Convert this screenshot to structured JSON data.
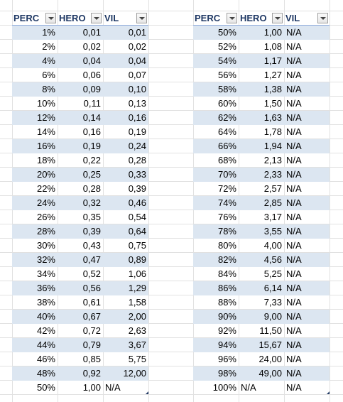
{
  "tables": [
    {
      "headers": [
        "PERC",
        "HERO",
        "VIL"
      ],
      "rows": [
        [
          "1%",
          "0,01",
          "0,01"
        ],
        [
          "2%",
          "0,02",
          "0,02"
        ],
        [
          "4%",
          "0,04",
          "0,04"
        ],
        [
          "6%",
          "0,06",
          "0,07"
        ],
        [
          "8%",
          "0,09",
          "0,10"
        ],
        [
          "10%",
          "0,11",
          "0,13"
        ],
        [
          "12%",
          "0,14",
          "0,16"
        ],
        [
          "14%",
          "0,16",
          "0,19"
        ],
        [
          "16%",
          "0,19",
          "0,24"
        ],
        [
          "18%",
          "0,22",
          "0,28"
        ],
        [
          "20%",
          "0,25",
          "0,33"
        ],
        [
          "22%",
          "0,28",
          "0,39"
        ],
        [
          "24%",
          "0,32",
          "0,46"
        ],
        [
          "26%",
          "0,35",
          "0,54"
        ],
        [
          "28%",
          "0,39",
          "0,64"
        ],
        [
          "30%",
          "0,43",
          "0,75"
        ],
        [
          "32%",
          "0,47",
          "0,89"
        ],
        [
          "34%",
          "0,52",
          "1,06"
        ],
        [
          "36%",
          "0,56",
          "1,29"
        ],
        [
          "38%",
          "0,61",
          "1,58"
        ],
        [
          "40%",
          "0,67",
          "2,00"
        ],
        [
          "42%",
          "0,72",
          "2,63"
        ],
        [
          "44%",
          "0,79",
          "3,67"
        ],
        [
          "46%",
          "0,85",
          "5,75"
        ],
        [
          "48%",
          "0,92",
          "12,00"
        ],
        [
          "50%",
          "1,00",
          "N/A"
        ]
      ]
    },
    {
      "headers": [
        "PERC",
        "HERO",
        "VIL"
      ],
      "rows": [
        [
          "50%",
          "1,00",
          "N/A"
        ],
        [
          "52%",
          "1,08",
          "N/A"
        ],
        [
          "54%",
          "1,17",
          "N/A"
        ],
        [
          "56%",
          "1,27",
          "N/A"
        ],
        [
          "58%",
          "1,38",
          "N/A"
        ],
        [
          "60%",
          "1,50",
          "N/A"
        ],
        [
          "62%",
          "1,63",
          "N/A"
        ],
        [
          "64%",
          "1,78",
          "N/A"
        ],
        [
          "66%",
          "1,94",
          "N/A"
        ],
        [
          "68%",
          "2,13",
          "N/A"
        ],
        [
          "70%",
          "2,33",
          "N/A"
        ],
        [
          "72%",
          "2,57",
          "N/A"
        ],
        [
          "74%",
          "2,85",
          "N/A"
        ],
        [
          "76%",
          "3,17",
          "N/A"
        ],
        [
          "78%",
          "3,55",
          "N/A"
        ],
        [
          "80%",
          "4,00",
          "N/A"
        ],
        [
          "82%",
          "4,56",
          "N/A"
        ],
        [
          "84%",
          "5,25",
          "N/A"
        ],
        [
          "86%",
          "6,14",
          "N/A"
        ],
        [
          "88%",
          "7,33",
          "N/A"
        ],
        [
          "90%",
          "9,00",
          "N/A"
        ],
        [
          "92%",
          "11,50",
          "N/A"
        ],
        [
          "94%",
          "15,67",
          "N/A"
        ],
        [
          "96%",
          "24,00",
          "N/A"
        ],
        [
          "98%",
          "49,00",
          "N/A"
        ],
        [
          "100%",
          "N/A",
          "N/A"
        ]
      ]
    }
  ],
  "colors": {
    "band": "#dce6f1",
    "header_text": "#1f3864",
    "gridline": "#e1e1e1"
  },
  "icons": {
    "filter": "filter-dropdown-icon"
  }
}
